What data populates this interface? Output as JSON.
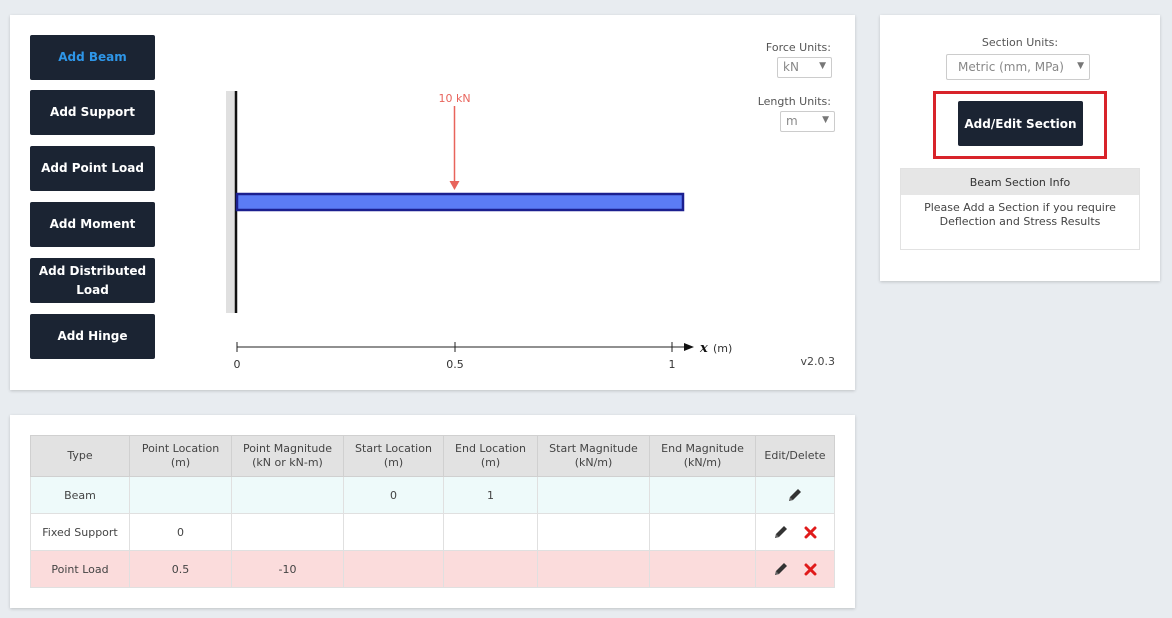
{
  "toolbar": {
    "buttons": [
      {
        "label": "Add Beam"
      },
      {
        "label": "Add Support"
      },
      {
        "label": "Add Point Load"
      },
      {
        "label": "Add Moment"
      },
      {
        "label": "Add Distributed Load"
      },
      {
        "label": "Add Hinge"
      }
    ]
  },
  "units": {
    "force_label": "Force Units:",
    "force_value": "kN",
    "length_label": "Length Units:",
    "length_value": "m"
  },
  "diagram": {
    "load_label": "10 kN",
    "load_position": 0.5,
    "beam_length": 1,
    "axis_ticks": [
      "0",
      "0.5",
      "1"
    ],
    "axis_var": "x",
    "axis_unit": "(m)"
  },
  "version": "v2.0.3",
  "section": {
    "units_label": "Section Units:",
    "units_value": "Metric (mm, MPa)",
    "button_label": "Add/Edit Section",
    "info_title": "Beam Section Info",
    "info_text": "Please Add a Section if you require Deflection and Stress Results"
  },
  "table": {
    "headers": [
      "Type",
      "Point Location (m)",
      "Point Magnitude (kN or kN-m)",
      "Start Location (m)",
      "End Location (m)",
      "Start Magnitude (kN/m)",
      "End Magnitude (kN/m)",
      "Edit/Delete"
    ],
    "rows": [
      {
        "type": "Beam",
        "point_location": "",
        "point_magnitude": "",
        "start_location": "0",
        "end_location": "1",
        "start_magnitude": "",
        "end_magnitude": ""
      },
      {
        "type": "Fixed Support",
        "point_location": "0",
        "point_magnitude": "",
        "start_location": "",
        "end_location": "",
        "start_magnitude": "",
        "end_magnitude": ""
      },
      {
        "type": "Point Load",
        "point_location": "0.5",
        "point_magnitude": "-10",
        "start_location": "",
        "end_location": "",
        "start_magnitude": "",
        "end_magnitude": ""
      }
    ]
  },
  "colors": {
    "button_bg": "#1b2433",
    "active_text": "#2e96e8",
    "beam_fill": "#5b7cf5",
    "load_arrow": "#e8645c",
    "highlight": "#d8232a",
    "delete_icon": "#e01b1b"
  }
}
